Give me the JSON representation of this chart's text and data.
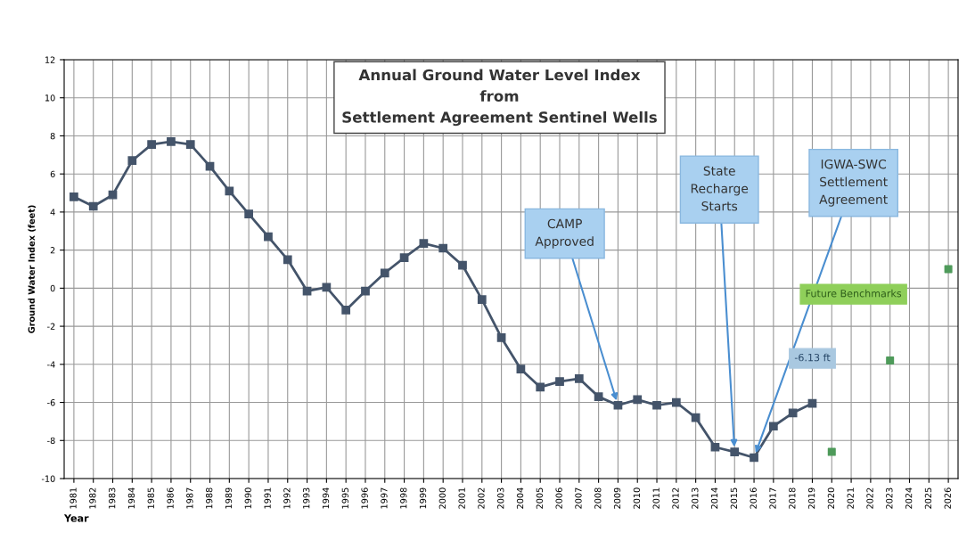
{
  "chart_data": {
    "type": "line",
    "title": "Annual Ground Water Level Index\nfrom\nSettlement Agreement Sentinel Wells",
    "xlabel": "Year",
    "ylabel": "Ground Water Index (feet)",
    "categories": [
      "1981",
      "1982",
      "1983",
      "1984",
      "1985",
      "1986",
      "1987",
      "1988",
      "1989",
      "1990",
      "1991",
      "1992",
      "1993",
      "1994",
      "1995",
      "1996",
      "1997",
      "1998",
      "1999",
      "2000",
      "2001",
      "2002",
      "2003",
      "2004",
      "2005",
      "2006",
      "2007",
      "2008",
      "2009",
      "2010",
      "2011",
      "2012",
      "2013",
      "2014",
      "2015",
      "2016",
      "2017",
      "2018",
      "2019",
      "2020",
      "2021",
      "2022",
      "2023",
      "2024",
      "2025",
      "2026"
    ],
    "series": [
      {
        "color": "#44546a",
        "marker": "square",
        "values": [
          4.8,
          4.3,
          4.9,
          6.7,
          7.55,
          7.7,
          7.55,
          6.4,
          5.1,
          3.9,
          2.7,
          1.5,
          -0.15,
          0.05,
          -1.15,
          -0.15,
          0.8,
          1.6,
          2.35,
          2.1,
          1.2,
          -0.6,
          -2.6,
          -4.25,
          -5.2,
          -4.9,
          -4.75,
          -5.7,
          -6.15,
          -5.85,
          -6.15,
          -6.0,
          -6.8,
          -8.35,
          -8.6,
          -8.9,
          -7.25,
          -6.55,
          -6.05,
          null,
          null,
          null,
          null,
          null,
          null,
          null
        ]
      },
      {
        "type": "scatter",
        "color": "#4e9a5a",
        "marker": "square",
        "values": [
          null,
          null,
          null,
          null,
          null,
          null,
          null,
          null,
          null,
          null,
          null,
          null,
          null,
          null,
          null,
          null,
          null,
          null,
          null,
          null,
          null,
          null,
          null,
          null,
          null,
          null,
          null,
          null,
          null,
          null,
          null,
          null,
          null,
          null,
          null,
          null,
          null,
          null,
          null,
          -8.6,
          null,
          null,
          -3.8,
          null,
          null,
          1.0
        ]
      }
    ],
    "ylim": [
      -10,
      12
    ],
    "yticks": [
      -10,
      -8,
      -6,
      -4,
      -2,
      0,
      2,
      4,
      6,
      8,
      10,
      12
    ],
    "grid": true,
    "legend": false,
    "annotations": [
      {
        "text": "CAMP\nApproved",
        "x": "2009",
        "y": -6.15
      },
      {
        "text": "State\nRecharge\nStarts",
        "x": "2015",
        "y": -8.6
      },
      {
        "text": "IGWA-SWC\nSettlement\nAgreement",
        "x": "2016",
        "y": -8.9
      },
      "Future Benchmarks",
      "-6.13 ft"
    ]
  }
}
